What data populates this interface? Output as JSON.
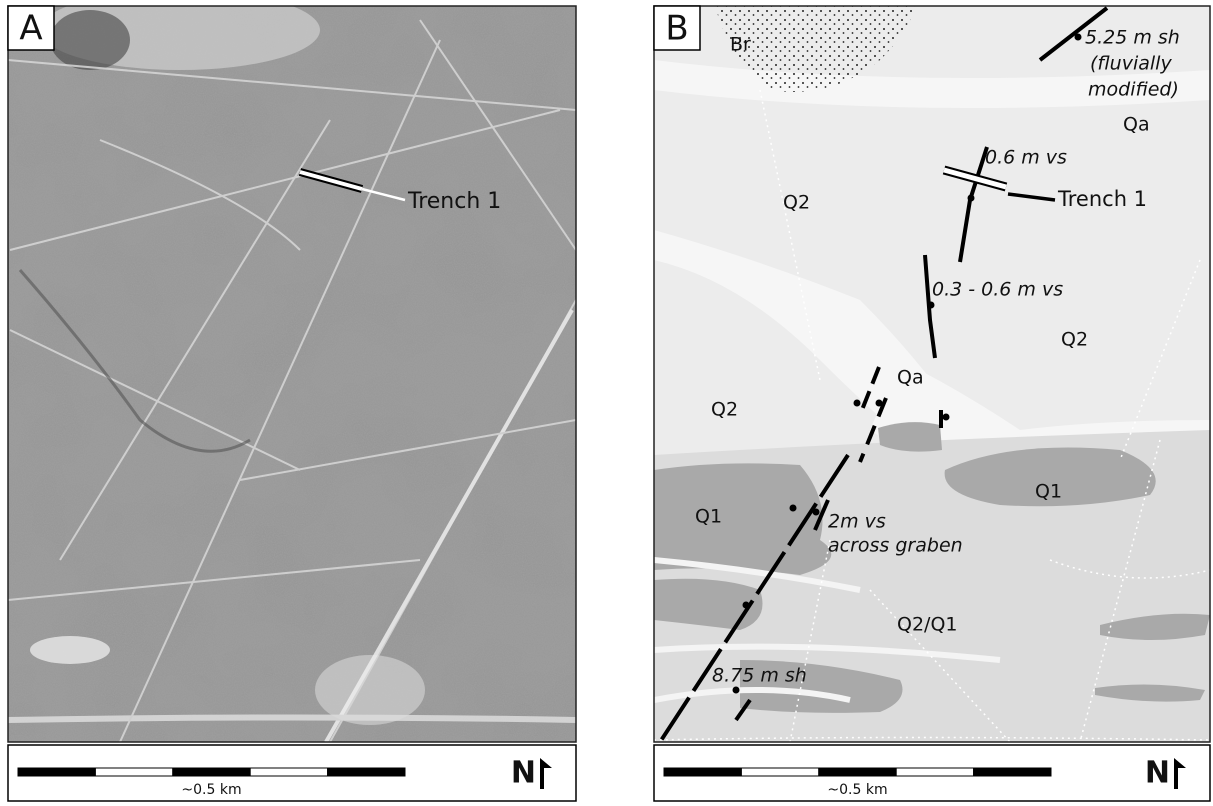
{
  "panels": [
    {
      "letter": "A",
      "labels": [
        "Trench 1"
      ],
      "scale_label": "~0.5 km",
      "north": "N"
    },
    {
      "letter": "B",
      "labels": [
        "Br",
        "5.25 m sh",
        "(fluvially",
        "modified)",
        "Qa",
        "0.6 m vs",
        "Trench 1",
        "Q2",
        "0.3 - 0.6 m vs",
        "Q2",
        "Qa",
        "Q2",
        "Q1",
        "Q1",
        "2m vs",
        "across graben",
        "Q2/Q1",
        "8.75 m sh"
      ],
      "scale_label": "~0.5 km",
      "north": "N"
    }
  ]
}
